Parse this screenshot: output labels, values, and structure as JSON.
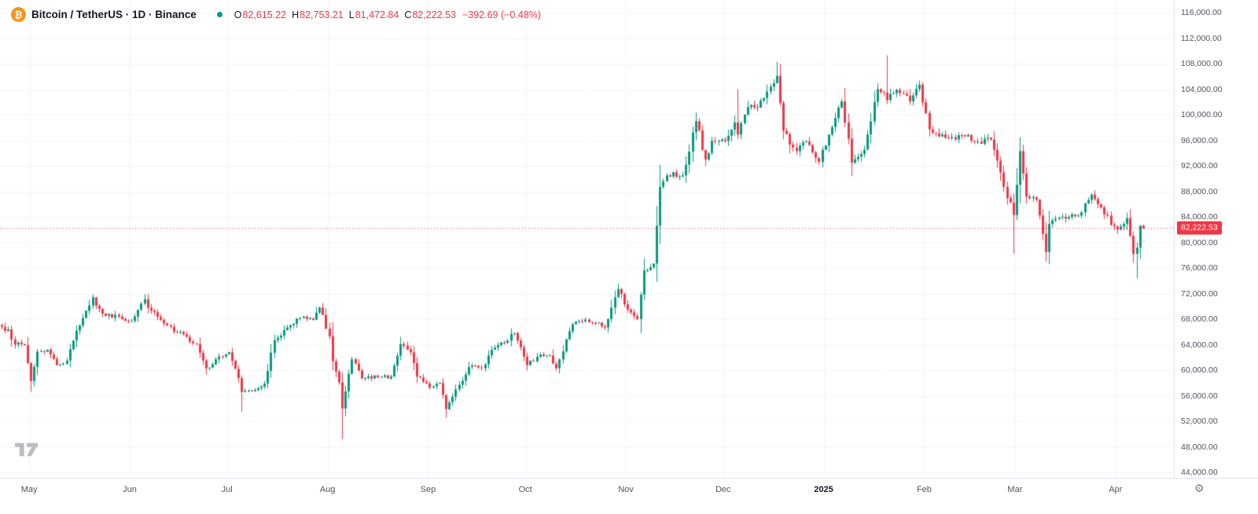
{
  "header": {
    "symbol_title": "Bitcoin / TetherUS · 1D · Binance",
    "ohlc": {
      "o_label": "O",
      "o_value": "82,615.22",
      "h_label": "H",
      "h_value": "82,753.21",
      "l_label": "L",
      "l_value": "81,472.84",
      "c_label": "C",
      "c_value": "82,222.53",
      "change": "−392.69 (−0.48%)"
    }
  },
  "price_axis": {
    "last_price_tag": "82,222.53",
    "labels": [
      {
        "v": 116000,
        "t": "116,000.00"
      },
      {
        "v": 112000,
        "t": "112,000.00"
      },
      {
        "v": 108000,
        "t": "108,000.00"
      },
      {
        "v": 104000,
        "t": "104,000.00"
      },
      {
        "v": 100000,
        "t": "100,000.00"
      },
      {
        "v": 96000,
        "t": "96,000.00"
      },
      {
        "v": 92000,
        "t": "92,000.00"
      },
      {
        "v": 88000,
        "t": "88,000.00"
      },
      {
        "v": 84000,
        "t": "84,000.00"
      },
      {
        "v": 80000,
        "t": "80,000.00"
      },
      {
        "v": 76000,
        "t": "76,000.00"
      },
      {
        "v": 72000,
        "t": "72,000.00"
      },
      {
        "v": 68000,
        "t": "68,000.00"
      },
      {
        "v": 64000,
        "t": "64,000.00"
      },
      {
        "v": 60000,
        "t": "60,000.00"
      },
      {
        "v": 56000,
        "t": "56,000.00"
      },
      {
        "v": 52000,
        "t": "52,000.00"
      },
      {
        "v": 48000,
        "t": "48,000.00"
      },
      {
        "v": 44000,
        "t": "44,000.00"
      }
    ]
  },
  "time_axis": {
    "labels": [
      {
        "text": "May",
        "day": 9,
        "year": false
      },
      {
        "text": "Jun",
        "day": 40,
        "year": false
      },
      {
        "text": "Jul",
        "day": 70,
        "year": false
      },
      {
        "text": "Aug",
        "day": 101,
        "year": false
      },
      {
        "text": "Sep",
        "day": 132,
        "year": false
      },
      {
        "text": "Oct",
        "day": 162,
        "year": false
      },
      {
        "text": "Nov",
        "day": 193,
        "year": false
      },
      {
        "text": "Dec",
        "day": 223,
        "year": false
      },
      {
        "text": "2025",
        "day": 254,
        "year": true
      },
      {
        "text": "Feb",
        "day": 285,
        "year": false
      },
      {
        "text": "Mar",
        "day": 313,
        "year": false
      },
      {
        "text": "Apr",
        "day": 344,
        "year": false
      }
    ]
  },
  "chart_data": {
    "type": "candlestick",
    "title": "Bitcoin / TetherUS 1D Binance daily candles, late Apr 2024 - early Apr 2025",
    "y_min": 44000,
    "y_max": 116000,
    "y_step": 4000,
    "total_days": 362,
    "last_close": 82222.53,
    "up_color": "#089981",
    "down_color": "#f23645",
    "grid_color": "#f0f3fa",
    "anchors_day_close_low_high_thousands": [
      [
        0,
        66.8
      ],
      [
        2,
        66.4
      ],
      [
        4,
        64.0
      ],
      [
        7,
        63.9
      ],
      [
        9,
        58.3,
        56.6
      ],
      [
        11,
        62.9
      ],
      [
        14,
        63.2
      ],
      [
        17,
        60.8
      ],
      [
        20,
        61.5
      ],
      [
        23,
        66.2
      ],
      [
        26,
        69.3
      ],
      [
        28,
        71.4,
        null,
        71.9
      ],
      [
        29,
        70.1
      ],
      [
        32,
        68.5
      ],
      [
        36,
        68.4
      ],
      [
        40,
        67.7
      ],
      [
        44,
        71.1,
        null,
        71.9
      ],
      [
        46,
        69.3
      ],
      [
        50,
        67.3
      ],
      [
        53,
        66.0
      ],
      [
        57,
        65.2
      ],
      [
        60,
        64.1
      ],
      [
        63,
        60.3
      ],
      [
        66,
        61.7
      ],
      [
        70,
        62.8
      ],
      [
        72,
        60.2
      ],
      [
        74,
        56.6,
        53.5
      ],
      [
        77,
        56.7
      ],
      [
        81,
        57.9
      ],
      [
        84,
        64.7
      ],
      [
        88,
        66.7
      ],
      [
        91,
        68.1
      ],
      [
        96,
        67.9
      ],
      [
        98,
        69.8,
        null,
        69.9
      ],
      [
        101,
        65.3
      ],
      [
        102,
        61.4
      ],
      [
        104,
        58.1
      ],
      [
        105,
        54.0,
        49.2
      ],
      [
        108,
        61.7
      ],
      [
        111,
        58.7
      ],
      [
        114,
        58.7
      ],
      [
        116,
        58.9
      ],
      [
        120,
        59.0
      ],
      [
        123,
        64.1
      ],
      [
        126,
        62.8
      ],
      [
        128,
        59.0
      ],
      [
        132,
        57.3
      ],
      [
        135,
        58.0
      ],
      [
        137,
        53.9,
        52.5
      ],
      [
        140,
        57.0
      ],
      [
        144,
        60.5
      ],
      [
        148,
        60.3
      ],
      [
        151,
        63.2
      ],
      [
        155,
        64.3
      ],
      [
        158,
        65.8
      ],
      [
        162,
        60.8
      ],
      [
        165,
        62.1
      ],
      [
        169,
        62.3
      ],
      [
        171,
        60.3
      ],
      [
        175,
        66.1
      ],
      [
        177,
        67.6
      ],
      [
        182,
        67.4
      ],
      [
        186,
        66.7
      ],
      [
        190,
        72.7,
        null,
        73.6
      ],
      [
        193,
        69.5
      ],
      [
        196,
        68.0
      ],
      [
        198,
        75.6
      ],
      [
        201,
        76.7
      ],
      [
        203,
        88.7
      ],
      [
        205,
        90.5
      ],
      [
        207,
        91.0
      ],
      [
        210,
        90.5
      ],
      [
        214,
        99.0,
        null,
        99.5
      ],
      [
        217,
        93.0
      ],
      [
        219,
        95.9
      ],
      [
        223,
        95.9
      ],
      [
        226,
        98.8
      ],
      [
        227,
        96.9,
        null,
        104.0
      ],
      [
        230,
        101.2
      ],
      [
        233,
        101.1
      ],
      [
        237,
        104.4
      ],
      [
        239,
        106.1,
        null,
        108.3
      ],
      [
        241,
        97.5
      ],
      [
        245,
        94.3
      ],
      [
        248,
        95.8
      ],
      [
        252,
        92.6
      ],
      [
        255,
        96.9
      ],
      [
        259,
        102.1
      ],
      [
        262,
        92.5
      ],
      [
        266,
        94.5
      ],
      [
        270,
        104.0
      ],
      [
        273,
        102.3,
        null,
        109.3
      ],
      [
        276,
        103.9
      ],
      [
        280,
        102.1
      ],
      [
        283,
        104.7
      ],
      [
        286,
        97.7
      ],
      [
        289,
        96.6
      ],
      [
        293,
        96.5
      ],
      [
        297,
        96.6
      ],
      [
        301,
        95.8
      ],
      [
        305,
        96.1
      ],
      [
        309,
        88.7
      ],
      [
        312,
        84.3,
        78.2
      ],
      [
        314,
        94.3
      ],
      [
        316,
        87.2
      ],
      [
        319,
        86.7
      ],
      [
        322,
        78.5
      ],
      [
        323,
        82.9,
        76.6
      ],
      [
        326,
        83.9
      ],
      [
        329,
        84.0
      ],
      [
        332,
        84.2
      ],
      [
        336,
        87.5
      ],
      [
        340,
        84.4
      ],
      [
        343,
        82.5
      ],
      [
        345,
        82.5
      ],
      [
        347,
        83.8
      ],
      [
        349,
        78.2
      ],
      [
        350,
        79.2,
        74.4
      ],
      [
        351,
        82.615
      ],
      [
        352,
        82.222
      ]
    ]
  },
  "icons": {
    "bitcoin_glyph": "₿",
    "gear_glyph": "⚙"
  }
}
